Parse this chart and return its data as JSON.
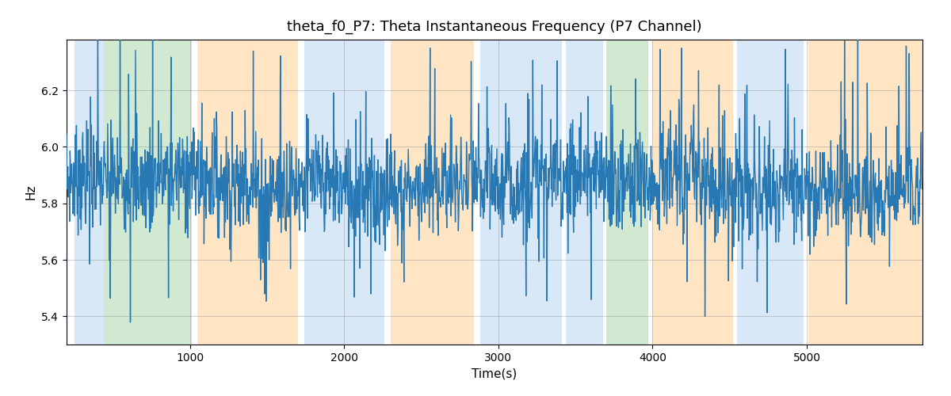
{
  "title": "theta_f0_P7: Theta Instantaneous Frequency (P7 Channel)",
  "xlabel": "Time(s)",
  "ylabel": "Hz",
  "xlim": [
    200,
    5750
  ],
  "ylim": [
    5.3,
    6.38
  ],
  "yticks": [
    5.4,
    5.6,
    5.8,
    6.0,
    6.2
  ],
  "line_color": "#2878b4",
  "line_width": 1.0,
  "background_color": "#ffffff",
  "title_fontsize": 13,
  "label_fontsize": 11,
  "grid_color": "#888888",
  "grid_alpha": 0.4,
  "mean_freq": 5.87,
  "std_freq": 0.09,
  "seed": 7,
  "n_points": 2000,
  "colored_bands": [
    {
      "xmin": 250,
      "xmax": 440,
      "color": "#aaccee",
      "alpha": 0.45
    },
    {
      "xmin": 440,
      "xmax": 1010,
      "color": "#99cc99",
      "alpha": 0.45
    },
    {
      "xmin": 1050,
      "xmax": 1700,
      "color": "#ffcc88",
      "alpha": 0.5
    },
    {
      "xmin": 1740,
      "xmax": 2260,
      "color": "#aaccee",
      "alpha": 0.45
    },
    {
      "xmin": 2300,
      "xmax": 2840,
      "color": "#ffcc88",
      "alpha": 0.5
    },
    {
      "xmin": 2880,
      "xmax": 3410,
      "color": "#aaccee",
      "alpha": 0.45
    },
    {
      "xmin": 3440,
      "xmax": 3680,
      "color": "#aaccee",
      "alpha": 0.45
    },
    {
      "xmin": 3700,
      "xmax": 3970,
      "color": "#99cc99",
      "alpha": 0.45
    },
    {
      "xmin": 4000,
      "xmax": 4520,
      "color": "#ffcc88",
      "alpha": 0.5
    },
    {
      "xmin": 4550,
      "xmax": 4980,
      "color": "#aaccee",
      "alpha": 0.45
    },
    {
      "xmin": 5010,
      "xmax": 5750,
      "color": "#ffcc88",
      "alpha": 0.5
    }
  ]
}
